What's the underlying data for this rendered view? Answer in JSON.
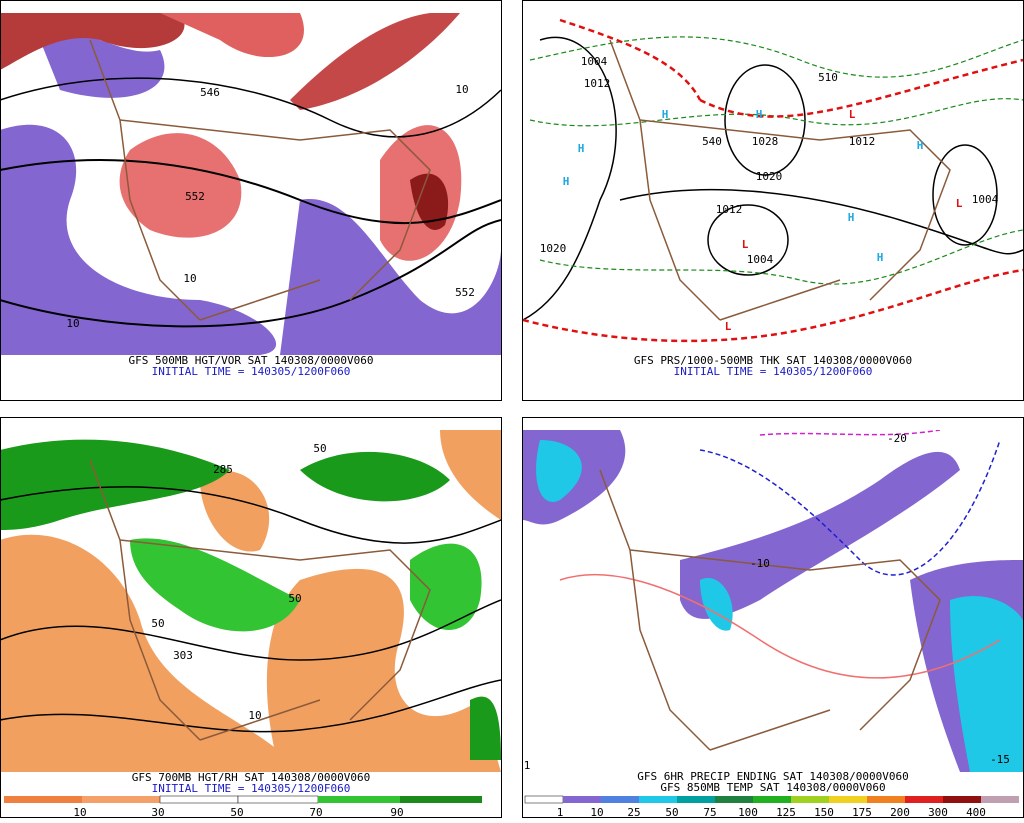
{
  "panels": [
    {
      "caption": [
        "GFS 500MB HGT/VOR SAT 140308/0000V060",
        "INITIAL TIME = 140305/1200F060"
      ],
      "labels": [
        "546",
        "552",
        "10",
        "10",
        "552",
        "10"
      ]
    },
    {
      "caption": [
        "GFS PRS/1000-500MB THK SAT 140308/0000V060",
        "INITIAL TIME = 140305/1200F060"
      ],
      "labels": [
        "H",
        "H",
        "H",
        "H",
        "H",
        "H",
        "H",
        "L",
        "L",
        "L",
        "L",
        "1004",
        "1012",
        "1028",
        "1020",
        "1012",
        "1004",
        "1020",
        "1004",
        "1012",
        "510",
        "540"
      ]
    },
    {
      "caption": [
        "GFS 700MB HGT/RH SAT 140308/0000V060",
        "INITIAL TIME = 140305/1200F060"
      ],
      "labels": [
        "50",
        "285",
        "303",
        "50",
        "50",
        "10"
      ],
      "colorbar": {
        "labels": [
          10,
          30,
          50,
          70,
          90
        ]
      }
    },
    {
      "caption": [
        "GFS 6HR PRECIP ENDING SAT 140308/0000V060",
        "GFS 850MB TEMP SAT 140308/0000V060"
      ],
      "labels": [
        "-20",
        "-10",
        "1",
        "-15"
      ],
      "colorbar": {
        "labels": [
          1,
          10,
          25,
          50,
          75,
          100,
          125,
          150,
          175,
          200,
          300,
          400
        ]
      }
    }
  ]
}
